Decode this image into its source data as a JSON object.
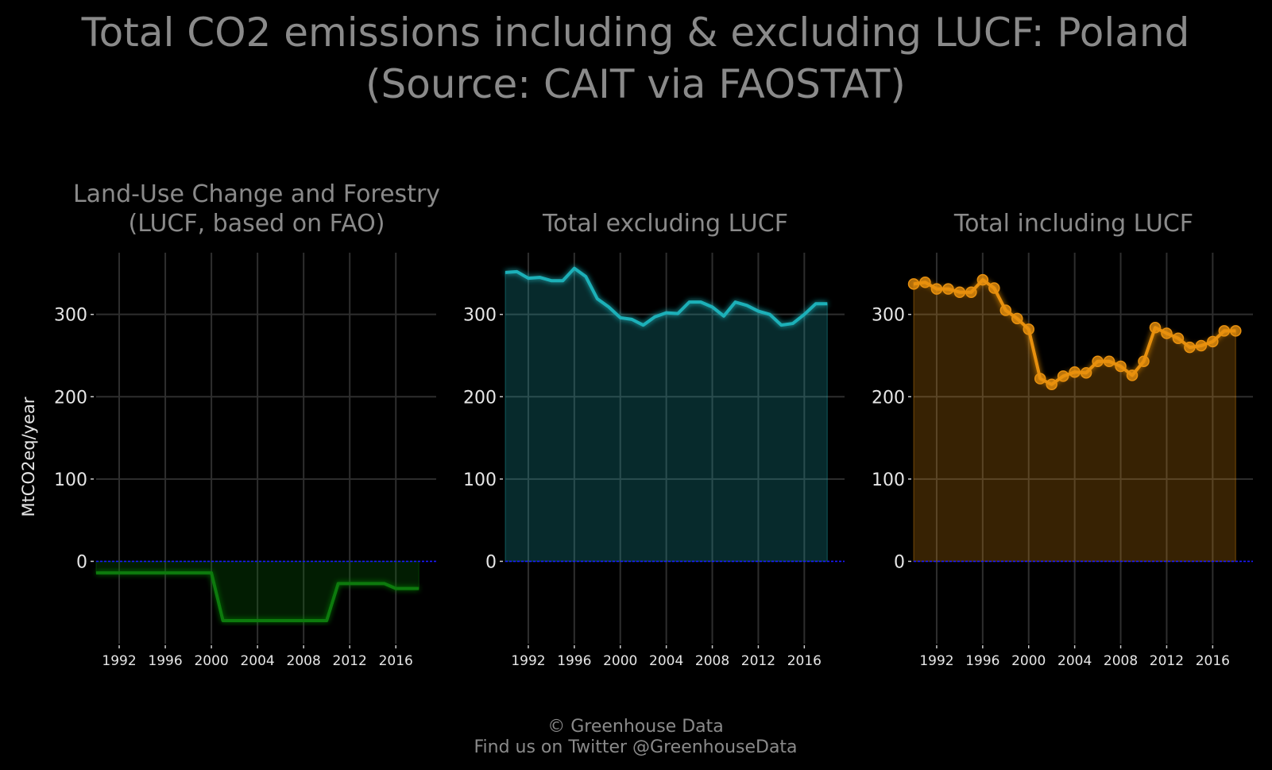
{
  "title_line1": "Total CO2 emissions including & excluding LUCF: Poland",
  "title_line2": "(Source: CAIT via FAOSTAT)",
  "ylabel": "MtCO2eq/year",
  "footer_line1": "© Greenhouse Data",
  "footer_line2": "Find us on Twitter @GreenhouseData",
  "colors": {
    "background": "#000000",
    "lucf": "#0a7a0a",
    "excl": "#1fb0b8",
    "incl": "#e8900e",
    "zero_line": "#1a1aff"
  },
  "chart_data": [
    {
      "type": "area",
      "title_lines": [
        "Land-Use Change and Forestry",
        "(LUCF, based on FAO)"
      ],
      "color": "#0a7a0a",
      "markers": false,
      "x": [
        1990,
        1991,
        1992,
        1993,
        1994,
        1995,
        1996,
        1997,
        1998,
        1999,
        2000,
        2001,
        2002,
        2003,
        2004,
        2005,
        2006,
        2007,
        2008,
        2009,
        2010,
        2011,
        2012,
        2013,
        2014,
        2015,
        2016,
        2017,
        2018
      ],
      "values": [
        -14,
        -14,
        -14,
        -14,
        -14,
        -14,
        -14,
        -14,
        -14,
        -14,
        -14,
        -72,
        -72,
        -72,
        -72,
        -72,
        -72,
        -72,
        -72,
        -72,
        -72,
        -27,
        -27,
        -27,
        -27,
        -27,
        -33,
        -33,
        -33
      ],
      "ylim": [
        -100,
        375
      ],
      "yticks": [
        0,
        100,
        200,
        300
      ],
      "xticks": [
        1992,
        1996,
        2000,
        2004,
        2008,
        2012,
        2016
      ],
      "grid": true
    },
    {
      "type": "area",
      "title_lines": [
        "Total excluding LUCF"
      ],
      "color": "#1fb0b8",
      "markers": false,
      "x": [
        1990,
        1991,
        1992,
        1993,
        1994,
        1995,
        1996,
        1997,
        1998,
        1999,
        2000,
        2001,
        2002,
        2003,
        2004,
        2005,
        2006,
        2007,
        2008,
        2009,
        2010,
        2011,
        2012,
        2013,
        2014,
        2015,
        2016,
        2017,
        2018
      ],
      "values": [
        351,
        352,
        344,
        345,
        341,
        341,
        356,
        346,
        319,
        309,
        296,
        294,
        287,
        297,
        302,
        301,
        315,
        315,
        309,
        298,
        315,
        311,
        304,
        300,
        287,
        289,
        300,
        313,
        313
      ],
      "ylim": [
        -100,
        375
      ],
      "yticks": [
        0,
        100,
        200,
        300
      ],
      "xticks": [
        1992,
        1996,
        2000,
        2004,
        2008,
        2012,
        2016
      ],
      "grid": true
    },
    {
      "type": "area",
      "title_lines": [
        "Total including LUCF"
      ],
      "color": "#e8900e",
      "markers": true,
      "x": [
        1990,
        1991,
        1992,
        1993,
        1994,
        1995,
        1996,
        1997,
        1998,
        1999,
        2000,
        2001,
        2002,
        2003,
        2004,
        2005,
        2006,
        2007,
        2008,
        2009,
        2010,
        2011,
        2012,
        2013,
        2014,
        2015,
        2016,
        2017,
        2018
      ],
      "values": [
        337,
        339,
        331,
        331,
        327,
        327,
        342,
        332,
        305,
        295,
        282,
        222,
        215,
        225,
        230,
        229,
        243,
        243,
        237,
        226,
        243,
        284,
        277,
        271,
        260,
        262,
        267,
        280,
        280
      ],
      "ylim": [
        -100,
        375
      ],
      "yticks": [
        0,
        100,
        200,
        300
      ],
      "xticks": [
        1992,
        1996,
        2000,
        2004,
        2008,
        2012,
        2016
      ],
      "grid": true
    }
  ]
}
